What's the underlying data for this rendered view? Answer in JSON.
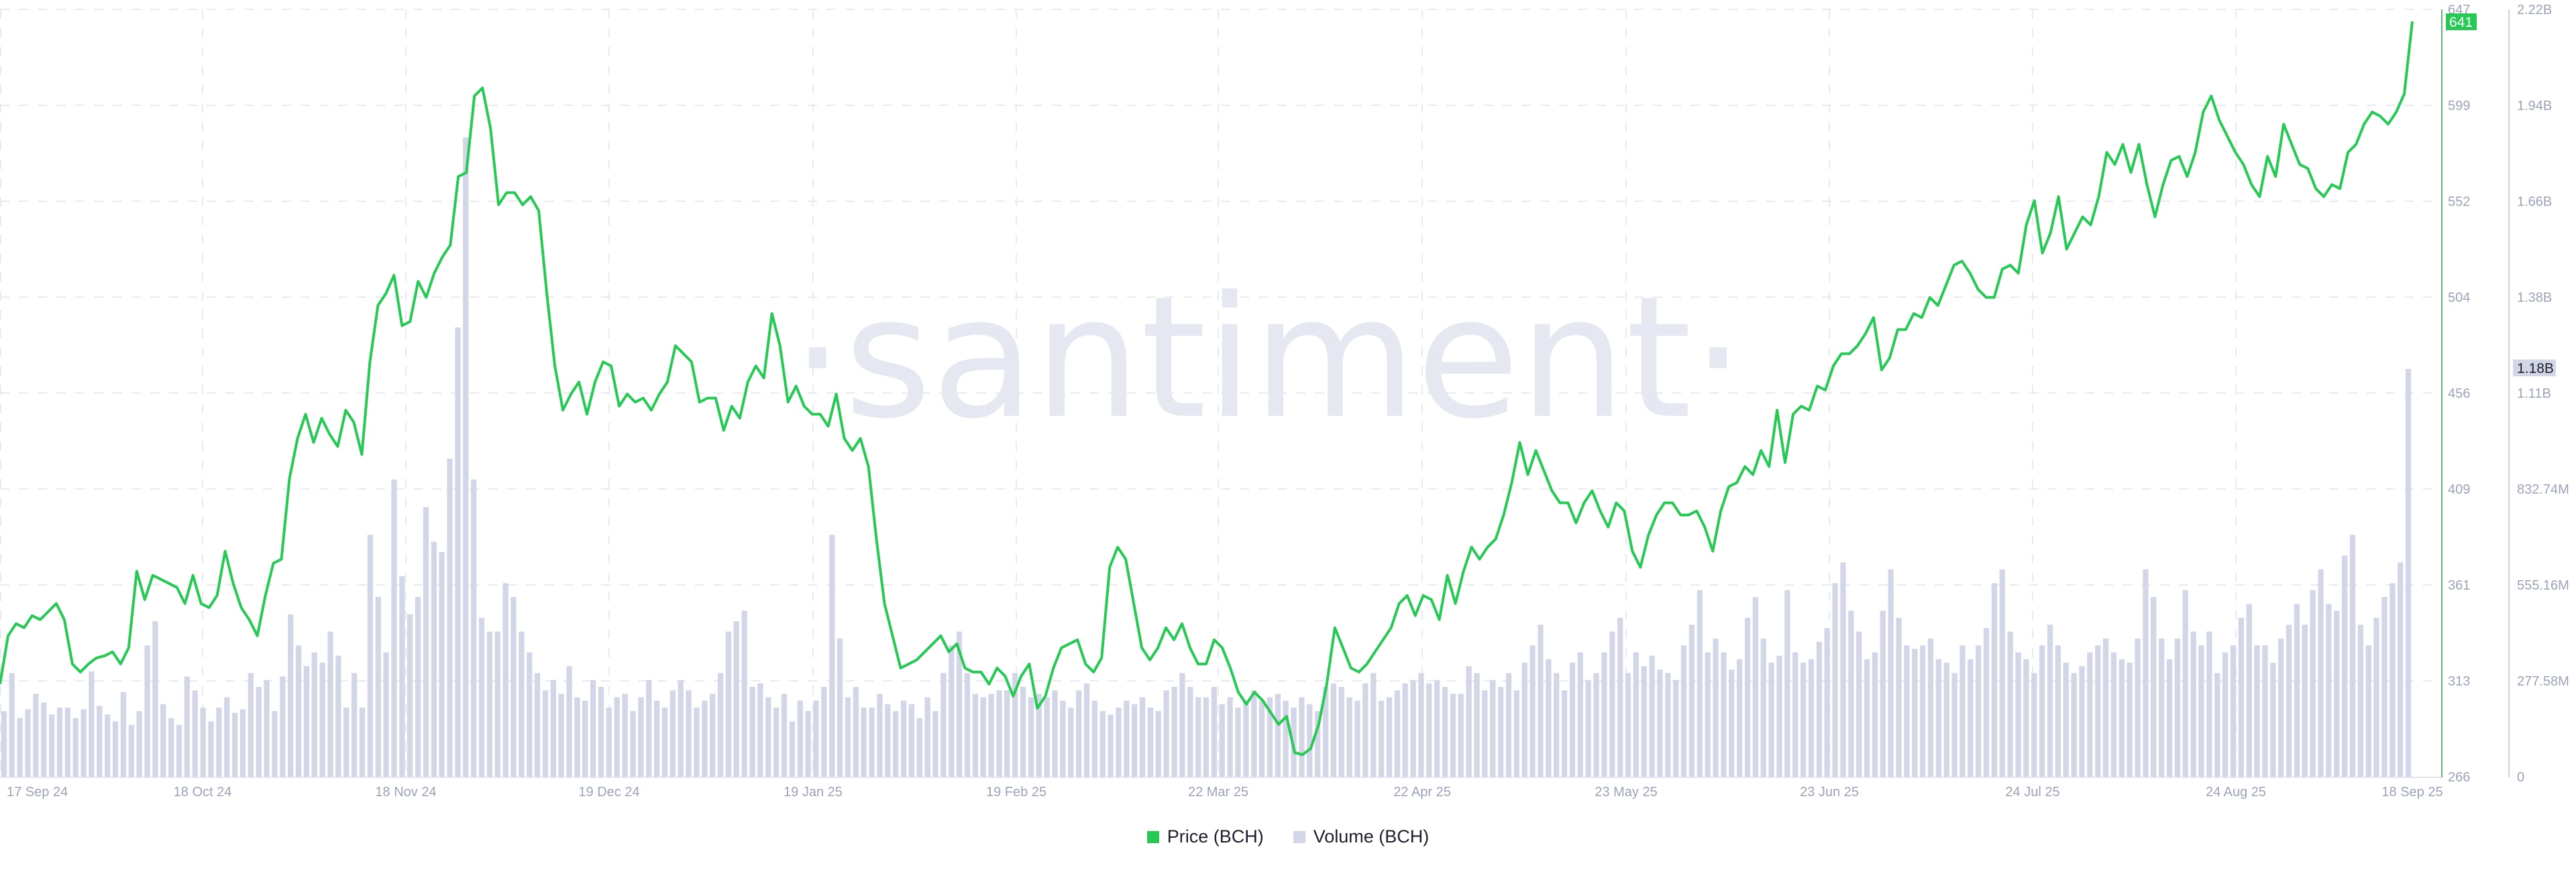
{
  "watermark": "·santiment·",
  "legend": [
    {
      "label": "Price (BCH)",
      "color": "#26c953"
    },
    {
      "label": "Volume (BCH)",
      "color": "#d2d6e7"
    }
  ],
  "price_axis": {
    "ticks": [
      "647",
      "599",
      "552",
      "504",
      "456",
      "409",
      "361",
      "313",
      "266"
    ],
    "current_value_tag": "641",
    "tag_color": "#26c953"
  },
  "volume_axis": {
    "ticks": [
      "2.22B",
      "1.94B",
      "1.66B",
      "1.38B",
      "1.11B",
      "832.74M",
      "555.16M",
      "277.58M",
      "0"
    ],
    "current_value_tag": "1.18B",
    "tag_color": "#d2d6e7"
  },
  "x_axis": {
    "ticks": [
      "17 Sep 24",
      "18 Oct 24",
      "18 Nov 24",
      "19 Dec 24",
      "19 Jan 25",
      "19 Feb 25",
      "22 Mar 25",
      "22 Apr 25",
      "23 May 25",
      "23 Jun 25",
      "24 Jul 25",
      "24 Aug 25",
      "18 Sep 25"
    ]
  },
  "chart_data": {
    "type": "line+bar",
    "title": "",
    "xlabel": "",
    "ylabel_left": "",
    "ylabel_right": "",
    "x_range": [
      "17 Sep 24",
      "18 Sep 25"
    ],
    "x_ticks": [
      "17 Sep 24",
      "18 Oct 24",
      "18 Nov 24",
      "19 Dec 24",
      "19 Jan 25",
      "19 Feb 25",
      "22 Mar 25",
      "22 Apr 25",
      "23 May 25",
      "23 Jun 25",
      "24 Jul 25",
      "24 Aug 25",
      "18 Sep 25"
    ],
    "price_ylim": [
      266,
      647
    ],
    "volume_ylim": [
      0,
      2220000000
    ],
    "grid": true,
    "legend_position": "bottom",
    "step_days": 2,
    "series": [
      {
        "name": "Price (BCH)",
        "type": "line",
        "axis": "price",
        "color": "#26c953",
        "last_value": 641,
        "values": [
          312,
          336,
          342,
          340,
          346,
          344,
          348,
          352,
          344,
          322,
          318,
          322,
          325,
          326,
          328,
          322,
          330,
          368,
          354,
          366,
          364,
          362,
          360,
          352,
          366,
          352,
          350,
          356,
          378,
          362,
          350,
          344,
          336,
          356,
          372,
          374,
          414,
          434,
          446,
          432,
          444,
          436,
          430,
          448,
          442,
          426,
          472,
          500,
          506,
          515,
          490,
          492,
          512,
          504,
          516,
          524,
          530,
          564,
          566,
          604,
          608,
          588,
          550,
          556,
          556,
          550,
          554,
          547,
          506,
          470,
          448,
          456,
          462,
          446,
          462,
          472,
          470,
          450,
          456,
          452,
          454,
          448,
          456,
          462,
          480,
          476,
          472,
          452,
          454,
          454,
          438,
          450,
          444,
          462,
          470,
          464,
          496,
          480,
          452,
          460,
          450,
          446,
          446,
          440,
          456,
          434,
          428,
          434,
          420,
          384,
          352,
          336,
          320,
          322,
          324,
          328,
          332,
          336,
          328,
          332,
          320,
          318,
          318,
          312,
          320,
          316,
          306,
          316,
          322,
          300,
          306,
          320,
          330,
          332,
          334,
          322,
          318,
          325,
          370,
          380,
          374,
          352,
          330,
          324,
          330,
          340,
          334,
          342,
          330,
          322,
          322,
          334,
          330,
          320,
          308,
          302,
          308,
          304,
          298,
          292,
          296,
          278,
          277,
          280,
          292,
          312,
          340,
          330,
          320,
          318,
          322,
          328,
          334,
          340,
          352,
          356,
          346,
          356,
          354,
          344,
          366,
          352,
          368,
          380,
          374,
          380,
          384,
          396,
          412,
          432,
          416,
          428,
          418,
          408,
          402,
          402,
          392,
          402,
          408,
          398,
          390,
          402,
          398,
          378,
          370,
          386,
          396,
          402,
          402,
          396,
          396,
          398,
          390,
          378,
          398,
          410,
          412,
          420,
          416,
          428,
          420,
          448,
          422,
          446,
          450,
          448,
          460,
          458,
          470,
          476,
          476,
          480,
          486,
          494,
          468,
          474,
          488,
          488,
          496,
          494,
          504,
          500,
          510,
          520,
          522,
          516,
          508,
          504,
          504,
          518,
          520,
          516,
          540,
          552,
          526,
          536,
          554,
          528,
          536,
          544,
          540,
          554,
          576,
          570,
          580,
          566,
          580,
          560,
          544,
          560,
          572,
          574,
          564,
          576,
          596,
          604,
          592,
          584,
          576,
          570,
          560,
          554,
          574,
          564,
          590,
          580,
          570,
          568,
          558,
          554,
          560,
          558,
          576,
          580,
          590,
          596,
          594,
          590,
          596,
          605,
          641
        ]
      },
      {
        "name": "Volume (BCH)",
        "type": "bar",
        "axis": "volume",
        "color": "#d2d6e7",
        "last_value": 1180000000,
        "values_millions": [
          190,
          300,
          170,
          195,
          240,
          215,
          180,
          200,
          200,
          170,
          195,
          305,
          205,
          180,
          160,
          245,
          150,
          190,
          380,
          450,
          210,
          170,
          150,
          290,
          250,
          200,
          160,
          200,
          230,
          185,
          195,
          300,
          260,
          280,
          190,
          290,
          470,
          380,
          320,
          360,
          330,
          420,
          350,
          200,
          300,
          200,
          700,
          520,
          360,
          860,
          580,
          470,
          520,
          780,
          680,
          650,
          920,
          1300,
          1850,
          860,
          460,
          420,
          420,
          560,
          520,
          420,
          360,
          300,
          250,
          280,
          240,
          320,
          230,
          220,
          280,
          260,
          200,
          230,
          240,
          190,
          230,
          280,
          220,
          200,
          250,
          280,
          250,
          200,
          220,
          240,
          300,
          420,
          450,
          480,
          260,
          270,
          230,
          200,
          240,
          160,
          220,
          190,
          220,
          260,
          700,
          400,
          230,
          260,
          200,
          200,
          240,
          210,
          190,
          220,
          210,
          170,
          230,
          190,
          300,
          380,
          420,
          300,
          240,
          230,
          240,
          250,
          250,
          300,
          260,
          230,
          240,
          230,
          250,
          220,
          200,
          250,
          270,
          220,
          190,
          180,
          200,
          220,
          210,
          230,
          200,
          190,
          250,
          260,
          300,
          260,
          230,
          230,
          260,
          210,
          230,
          200,
          220,
          250,
          220,
          230,
          240,
          220,
          200,
          230,
          210,
          190,
          260,
          270,
          260,
          230,
          220,
          270,
          300,
          220,
          230,
          250,
          270,
          280,
          300,
          270,
          280,
          260,
          240,
          240,
          320,
          300,
          250,
          280,
          260,
          300,
          250,
          330,
          380,
          440,
          340,
          300,
          250,
          330,
          360,
          280,
          300,
          360,
          420,
          460,
          300,
          360,
          320,
          350,
          310,
          300,
          280,
          380,
          440,
          540,
          360,
          400,
          360,
          310,
          340,
          460,
          520,
          400,
          330,
          350,
          540,
          360,
          330,
          340,
          390,
          430,
          560,
          620,
          480,
          420,
          340,
          360,
          480,
          600,
          460,
          380,
          370,
          380,
          400,
          340,
          330,
          300,
          380,
          340,
          380,
          430,
          560,
          600,
          420,
          360,
          340,
          300,
          380,
          440,
          380,
          330,
          300,
          320,
          360,
          380,
          400,
          360,
          340,
          330,
          400,
          600,
          520,
          400,
          340,
          400,
          540,
          420,
          380,
          420,
          300,
          360,
          380,
          460,
          500,
          380,
          380,
          330,
          400,
          440,
          500,
          440,
          540,
          600,
          500,
          480,
          640,
          700,
          440,
          380,
          460,
          520,
          560,
          620,
          1180
        ]
      }
    ]
  }
}
